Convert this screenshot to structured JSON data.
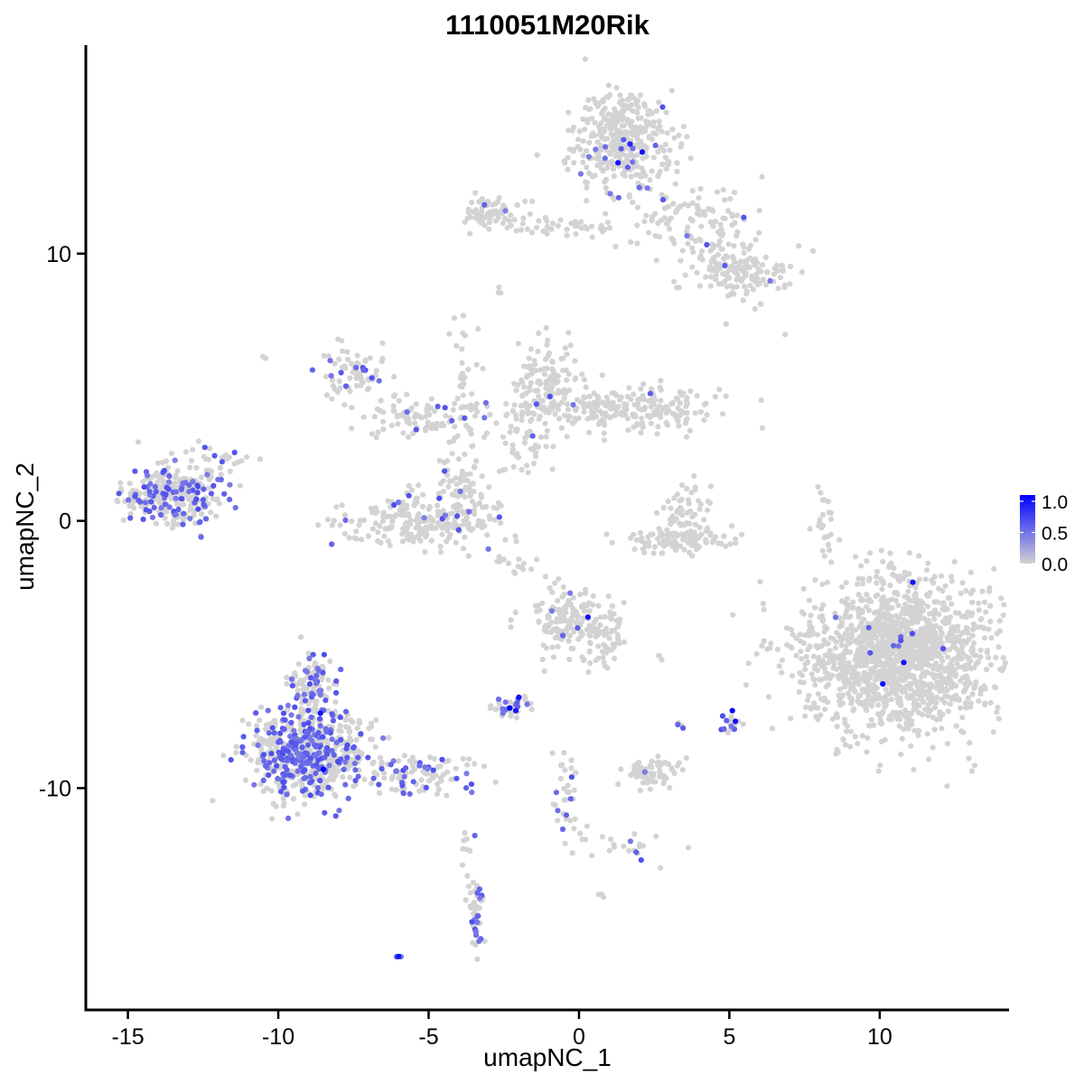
{
  "chart_data": {
    "type": "scatter",
    "title": "1110051M20Rik",
    "xlabel": "umapNC_1",
    "ylabel": "umapNC_2",
    "xlim": [
      -16.4,
      14.3
    ],
    "ylim": [
      -18.3,
      17.8
    ],
    "x_ticks": [
      -15,
      -10,
      -5,
      0,
      5,
      10
    ],
    "y_ticks": [
      10,
      0,
      -10
    ],
    "x_tick_labels": [
      "-15",
      "-10",
      "-5",
      "0",
      "5",
      "10"
    ],
    "y_tick_labels": [
      "10",
      "0",
      "-10"
    ],
    "grid": false,
    "legend": {
      "placement": "right",
      "labels": [
        "1.0",
        "0.5",
        "0.0"
      ],
      "values": [
        1.0,
        0.5,
        0.0
      ],
      "max": 1.1
    },
    "color_low": "#d3d3d3",
    "color_high": "#0000ff",
    "clusters": [
      {
        "cx": 1.5,
        "cy": 14.3,
        "sx": 0.8,
        "sy": 1.0,
        "n": 380,
        "pos_frac": 0.04
      },
      {
        "cx": 4.0,
        "cy": 11.2,
        "sx": 1.0,
        "sy": 0.8,
        "n": 110,
        "pos_frac": 0.02
      },
      {
        "cx": 5.3,
        "cy": 9.3,
        "sx": 0.8,
        "sy": 0.5,
        "n": 140,
        "pos_frac": 0.03
      },
      {
        "cx": -2.8,
        "cy": 11.5,
        "sx": 0.6,
        "sy": 0.35,
        "n": 70,
        "pos_frac": 0.03
      },
      {
        "cx": -0.3,
        "cy": 11.0,
        "sx": 1.0,
        "sy": 0.2,
        "n": 40,
        "pos_frac": 0.02
      },
      {
        "cx": -7.3,
        "cy": 5.5,
        "sx": 0.5,
        "sy": 0.6,
        "n": 70,
        "pos_frac": 0.2
      },
      {
        "cx": -5.0,
        "cy": 3.9,
        "sx": 1.2,
        "sy": 0.4,
        "n": 90,
        "pos_frac": 0.12
      },
      {
        "cx": -3.7,
        "cy": 5.8,
        "sx": 0.3,
        "sy": 1.2,
        "n": 35,
        "pos_frac": 0.02
      },
      {
        "cx": -4.3,
        "cy": 2.0,
        "sx": 0.25,
        "sy": 0.9,
        "n": 18,
        "pos_frac": 0.1
      },
      {
        "cx": -5.2,
        "cy": 0.0,
        "sx": 1.3,
        "sy": 0.5,
        "n": 220,
        "pos_frac": 0.07
      },
      {
        "cx": -3.8,
        "cy": 1.2,
        "sx": 0.4,
        "sy": 0.6,
        "n": 50,
        "pos_frac": 0.08
      },
      {
        "cx": -1.1,
        "cy": 5.3,
        "sx": 0.5,
        "sy": 0.7,
        "n": 110,
        "pos_frac": 0.06
      },
      {
        "cx": 1.5,
        "cy": 4.2,
        "sx": 1.6,
        "sy": 0.4,
        "n": 230,
        "pos_frac": 0.01
      },
      {
        "cx": -1.7,
        "cy": 3.0,
        "sx": 0.5,
        "sy": 0.7,
        "n": 60,
        "pos_frac": 0.0
      },
      {
        "cx": -13.5,
        "cy": 1.0,
        "sx": 0.8,
        "sy": 0.6,
        "n": 300,
        "pos_frac": 0.28
      },
      {
        "cx": -12.2,
        "cy": 2.2,
        "sx": 0.4,
        "sy": 0.3,
        "n": 25,
        "pos_frac": 0.2
      },
      {
        "cx": 3.6,
        "cy": 0.3,
        "sx": 0.4,
        "sy": 0.6,
        "n": 50,
        "pos_frac": 0.03
      },
      {
        "cx": 3.4,
        "cy": -0.7,
        "sx": 0.9,
        "sy": 0.25,
        "n": 110,
        "pos_frac": 0.01
      },
      {
        "cx": -0.3,
        "cy": -3.8,
        "sx": 0.7,
        "sy": 0.6,
        "n": 160,
        "pos_frac": 0.04
      },
      {
        "cx": 0.9,
        "cy": -4.6,
        "sx": 0.3,
        "sy": 0.6,
        "n": 40,
        "pos_frac": 0.0
      },
      {
        "cx": 10.6,
        "cy": -5.0,
        "sx": 1.6,
        "sy": 1.4,
        "n": 1500,
        "pos_frac": 0.007
      },
      {
        "cx": -9.0,
        "cy": -8.7,
        "sx": 0.9,
        "sy": 0.8,
        "n": 650,
        "pos_frac": 0.33
      },
      {
        "cx": -8.8,
        "cy": -6.0,
        "sx": 0.4,
        "sy": 0.6,
        "n": 90,
        "pos_frac": 0.3
      },
      {
        "cx": -5.3,
        "cy": -9.5,
        "sx": 0.9,
        "sy": 0.35,
        "n": 100,
        "pos_frac": 0.35
      },
      {
        "cx": -2.3,
        "cy": -7.0,
        "sx": 0.3,
        "sy": 0.2,
        "n": 30,
        "pos_frac": 0.35
      },
      {
        "cx": -1.8,
        "cy": -6.6,
        "sx": 0.15,
        "sy": 0.3,
        "n": 8,
        "pos_frac": 0.2
      },
      {
        "cx": 5.0,
        "cy": -7.6,
        "sx": 0.15,
        "sy": 0.2,
        "n": 14,
        "pos_frac": 0.6
      },
      {
        "cx": 3.4,
        "cy": -7.7,
        "sx": 0.1,
        "sy": 0.1,
        "n": 4,
        "pos_frac": 0.5
      },
      {
        "cx": 2.4,
        "cy": -9.4,
        "sx": 0.5,
        "sy": 0.25,
        "n": 70,
        "pos_frac": 0.03
      },
      {
        "cx": -0.4,
        "cy": -10.5,
        "sx": 0.2,
        "sy": 1.0,
        "n": 35,
        "pos_frac": 0.15
      },
      {
        "cx": 1.6,
        "cy": -12.2,
        "sx": 0.8,
        "sy": 0.3,
        "n": 25,
        "pos_frac": 0.1
      },
      {
        "cx": -3.4,
        "cy": -14.8,
        "sx": 0.15,
        "sy": 0.8,
        "n": 45,
        "pos_frac": 0.45
      },
      {
        "cx": -3.8,
        "cy": -12.4,
        "sx": 0.08,
        "sy": 0.5,
        "n": 8,
        "pos_frac": 0.1
      },
      {
        "cx": 8.2,
        "cy": -0.2,
        "sx": 0.2,
        "sy": 0.6,
        "n": 22,
        "pos_frac": 0.0
      },
      {
        "cx": -2.0,
        "cy": -1.5,
        "sx": 0.8,
        "sy": 0.4,
        "n": 18,
        "pos_frac": 0.0
      },
      {
        "cx": -6.0,
        "cy": -16.3,
        "sx": 0.05,
        "sy": 0.05,
        "n": 2,
        "pos_frac": 1.0
      },
      {
        "cx": -2.7,
        "cy": 8.7,
        "sx": 0.1,
        "sy": 0.1,
        "n": 3,
        "pos_frac": 0.0
      },
      {
        "cx": 6.8,
        "cy": 7.0,
        "sx": 0.05,
        "sy": 0.05,
        "n": 1,
        "pos_frac": 0.0
      },
      {
        "cx": -10.5,
        "cy": 6.1,
        "sx": 0.05,
        "sy": 0.05,
        "n": 2,
        "pos_frac": 0.0
      },
      {
        "cx": 2.7,
        "cy": -5.1,
        "sx": 0.1,
        "sy": 0.05,
        "n": 3,
        "pos_frac": 0.0
      },
      {
        "cx": 0.6,
        "cy": -14.0,
        "sx": 0.1,
        "sy": 0.05,
        "n": 3,
        "pos_frac": 0.0
      }
    ],
    "highlight_points": [
      {
        "x": 1.3,
        "y": 13.4,
        "v": 1.0
      },
      {
        "x": 2.1,
        "y": 13.8,
        "v": 1.05
      },
      {
        "x": 1.7,
        "y": 14.1,
        "v": 0.9
      },
      {
        "x": 0.3,
        "y": -3.6,
        "v": 1.0
      },
      {
        "x": -2.0,
        "y": -6.6,
        "v": 1.0
      },
      {
        "x": -2.3,
        "y": -7.0,
        "v": 1.1
      },
      {
        "x": -2.1,
        "y": -7.1,
        "v": 1.0
      },
      {
        "x": 5.1,
        "y": -7.1,
        "v": 1.1
      },
      {
        "x": 5.2,
        "y": -7.5,
        "v": 1.0
      },
      {
        "x": 11.1,
        "y": -2.3,
        "v": 1.0
      },
      {
        "x": 10.1,
        "y": -6.1,
        "v": 1.0
      },
      {
        "x": 10.8,
        "y": -5.3,
        "v": 1.0
      },
      {
        "x": -6.0,
        "y": -16.3,
        "v": 1.0
      },
      {
        "x": -8.5,
        "y": -9.3,
        "v": 1.1
      },
      {
        "x": -8.6,
        "y": -7.2,
        "v": 1.0
      }
    ]
  }
}
